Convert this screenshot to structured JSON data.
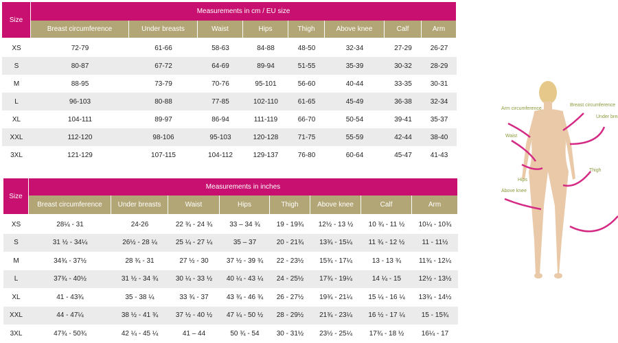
{
  "tables": [
    {
      "corner": "Size",
      "title": "Measurements in cm / EU size",
      "columns": [
        "Breast circumference",
        "Under breasts",
        "Waist",
        "Hips",
        "Thigh",
        "Above knee",
        "Calf",
        "Arm"
      ],
      "rows": [
        [
          "XS",
          "72-79",
          "61-66",
          "58-63",
          "84-88",
          "48-50",
          "32-34",
          "27-29",
          "26-27"
        ],
        [
          "S",
          "80-87",
          "67-72",
          "64-69",
          "89-94",
          "51-55",
          "35-39",
          "30-32",
          "28-29"
        ],
        [
          "M",
          "88-95",
          "73-79",
          "70-76",
          "95-101",
          "56-60",
          "40-44",
          "33-35",
          "30-31"
        ],
        [
          "L",
          "96-103",
          "80-88",
          "77-85",
          "102-110",
          "61-65",
          "45-49",
          "36-38",
          "32-34"
        ],
        [
          "XL",
          "104-111",
          "89-97",
          "86-94",
          "111-119",
          "66-70",
          "50-54",
          "39-41",
          "35-37"
        ],
        [
          "XXL",
          "112-120",
          "98-106",
          "95-103",
          "120-128",
          "71-75",
          "55-59",
          "42-44",
          "38-40"
        ],
        [
          "3XL",
          "121-129",
          "107-115",
          "104-112",
          "129-137",
          "76-80",
          "60-64",
          "45-47",
          "41-43"
        ]
      ]
    },
    {
      "corner": "Size",
      "title": "Measurements in inches",
      "columns": [
        "Breast circumference",
        "Under breasts",
        "Waist",
        "Hips",
        "Thigh",
        "Above knee",
        "Calf",
        "Arm"
      ],
      "rows": [
        [
          "XS",
          "28¼ - 31",
          "24-26",
          "22 ¾ - 24 ¾",
          "33 – 34 ¾",
          "19 - 19¾",
          "12½ - 13 ½",
          "10 ¾ - 11 ½",
          "10¼ - 10¾"
        ],
        [
          "S",
          "31 ½ - 34¼",
          "26½ - 28 ¼",
          "25 ¼ - 27 ¼",
          "35 – 37",
          "20 - 21¾",
          "13¾ - 15¼",
          "11 ¾ - 12 ½",
          "11 - 11½"
        ],
        [
          "M",
          "34¾ - 37½",
          "28 ¾ - 31",
          "27 ½ - 30",
          "37 ½ - 39 ¾",
          "22 - 23½",
          "15¾ - 17¼",
          "13 - 13 ¾",
          "11¾ - 12¼"
        ],
        [
          "L",
          "37¾ - 40½",
          "31 ½ - 34 ¾",
          "30 ¼ - 33 ½",
          "40 ¼ - 43 ¼",
          "24 - 25½",
          "17¾ - 19¼",
          "14 ¼ - 15",
          "12½ - 13½"
        ],
        [
          "XL",
          "41 - 43¾",
          "35 - 38 ¼",
          "33 ¾ - 37",
          "43 ¾ - 46 ¾",
          "26 - 27½",
          "19¾ - 21¼",
          "15 ¼ - 16 ¼",
          "13¾ - 14½"
        ],
        [
          "XXL",
          "44 - 47¼",
          "38 ½ - 41 ¾",
          "37 ½ - 40 ½",
          "47 ¼ - 50 ½",
          "28 - 29½",
          "21¾ - 23¼",
          "16 ½ - 17 ¼",
          "15 - 15¾"
        ],
        [
          "3XL",
          "47¾ - 50¾",
          "42 ¼ - 45 ¼",
          "41 – 44",
          "50 ¾ - 54",
          "30 - 31½",
          "23½ - 25¼",
          "17¾ - 18 ½",
          "16¼ - 17"
        ]
      ]
    }
  ],
  "figure": {
    "labels": [
      "Arm circumference",
      "Breast circumference",
      "Under breasts",
      "Waist",
      "Thigh",
      "Hips",
      "Above knee"
    ]
  }
}
